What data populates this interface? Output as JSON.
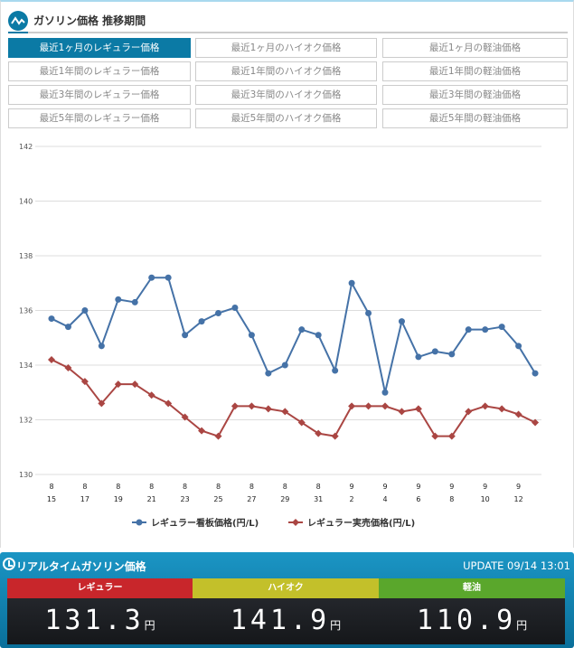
{
  "header": {
    "title": "ガソリン価格 推移期間"
  },
  "buttons": [
    [
      "最近1ヶ月のレギュラー価格",
      "最近1ヶ月のハイオク価格",
      "最近1ヶ月の軽油価格"
    ],
    [
      "最近1年間のレギュラー価格",
      "最近1年間のハイオク価格",
      "最近1年間の軽油価格"
    ],
    [
      "最近3年間のレギュラー価格",
      "最近3年間のハイオク価格",
      "最近3年間の軽油価格"
    ],
    [
      "最近5年間のレギュラー価格",
      "最近5年間のハイオク価格",
      "最近5年間の軽油価格"
    ]
  ],
  "chart_data": {
    "type": "line",
    "x": [
      "8/15",
      "8/16",
      "8/17",
      "8/18",
      "8/19",
      "8/20",
      "8/21",
      "8/22",
      "8/23",
      "8/24",
      "8/25",
      "8/26",
      "8/27",
      "8/28",
      "8/29",
      "8/30",
      "8/31",
      "9/1",
      "9/2",
      "9/3",
      "9/4",
      "9/5",
      "9/6",
      "9/7",
      "9/8",
      "9/9",
      "9/10",
      "9/11",
      "9/12",
      "9/13"
    ],
    "xticks": [
      [
        "8",
        "15"
      ],
      [
        "8",
        "17"
      ],
      [
        "8",
        "19"
      ],
      [
        "8",
        "21"
      ],
      [
        "8",
        "23"
      ],
      [
        "8",
        "25"
      ],
      [
        "8",
        "27"
      ],
      [
        "8",
        "29"
      ],
      [
        "8",
        "31"
      ],
      [
        "9",
        "2"
      ],
      [
        "9",
        "4"
      ],
      [
        "9",
        "6"
      ],
      [
        "9",
        "8"
      ],
      [
        "9",
        "10"
      ],
      [
        "9",
        "12"
      ]
    ],
    "yticks": [
      "130",
      "132",
      "134",
      "136",
      "138",
      "140",
      "142"
    ],
    "ylim": [
      130,
      142
    ],
    "series": [
      {
        "name": "レギュラー看板価格(円/L)",
        "color": "#4572a7",
        "marker": "circle",
        "values": [
          135.7,
          135.4,
          136.0,
          134.7,
          136.4,
          136.3,
          137.2,
          137.2,
          135.1,
          135.6,
          135.9,
          136.1,
          135.1,
          133.7,
          134.0,
          135.3,
          135.1,
          133.8,
          137.0,
          135.9,
          133.0,
          135.6,
          134.3,
          134.5,
          134.4,
          135.3,
          135.3,
          135.4,
          134.7,
          133.7
        ]
      },
      {
        "name": "レギュラー実売価格(円/L)",
        "color": "#aa4643",
        "marker": "diamond",
        "values": [
          134.2,
          133.9,
          133.4,
          132.6,
          133.3,
          133.3,
          132.9,
          132.6,
          132.1,
          131.6,
          131.4,
          132.5,
          132.5,
          132.4,
          132.3,
          131.9,
          131.5,
          131.4,
          132.5,
          132.5,
          132.5,
          132.3,
          132.4,
          131.4,
          131.4,
          132.3,
          132.5,
          132.4,
          132.2,
          131.9
        ]
      }
    ],
    "legend": "bottom",
    "grid": true
  },
  "realtime": {
    "title": "リアルタイムガソリン価格",
    "update": "UPDATE 09/14 13:01",
    "items": [
      {
        "label": "レギュラー",
        "price": "131.3",
        "unit": "円",
        "color": "#c8262b"
      },
      {
        "label": "ハイオク",
        "price": "141.9",
        "unit": "円",
        "color": "#c3c02a"
      },
      {
        "label": "軽油",
        "price": "110.9",
        "unit": "円",
        "color": "#5aa72c"
      }
    ]
  }
}
